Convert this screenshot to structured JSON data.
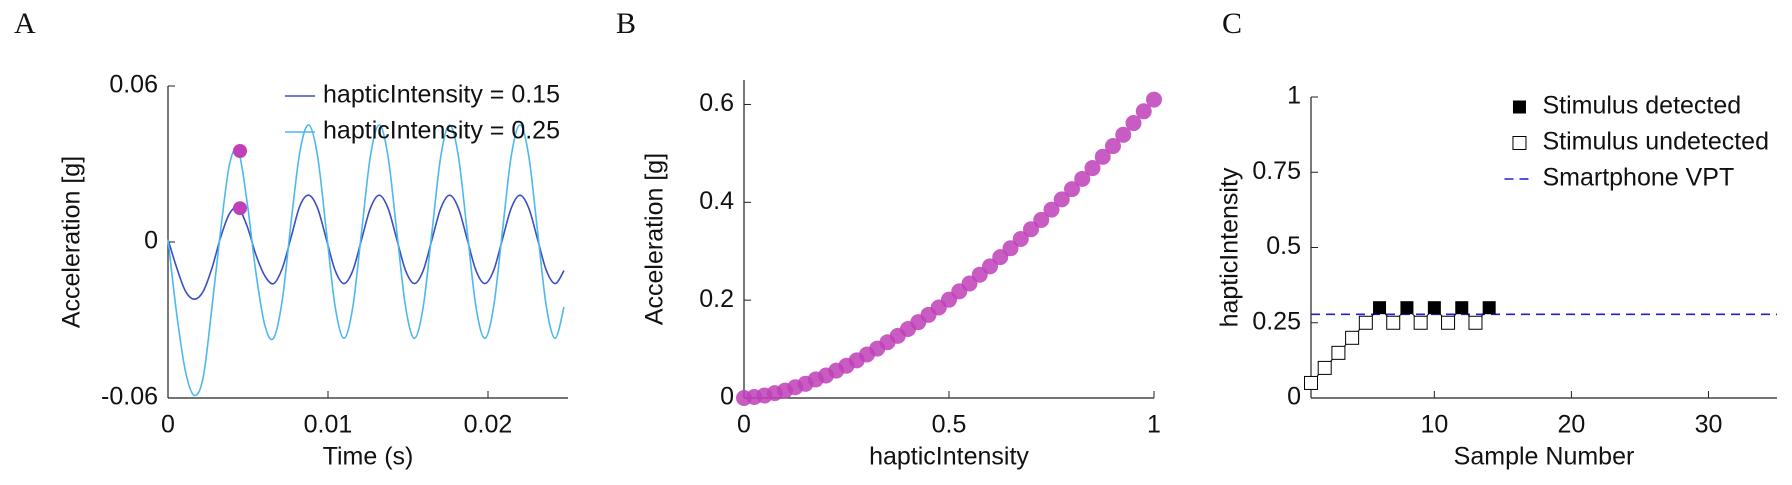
{
  "chart_data": [
    {
      "type": "line",
      "panel_label": "A",
      "xlabel": "Time (s)",
      "ylabel": "Acceleration [g]",
      "xlim": [
        0,
        0.025
      ],
      "ylim": [
        -0.06,
        0.06
      ],
      "xticks": [
        0,
        0.01,
        0.02
      ],
      "yticks": [
        -0.06,
        0,
        0.06
      ],
      "legend": "upper right",
      "x": [
        0,
        0.00055,
        0.0011,
        0.00165,
        0.0022,
        0.00275,
        0.0033,
        0.00385,
        0.0044,
        0.00495,
        0.0055,
        0.00605,
        0.0066,
        0.00715,
        0.0077,
        0.00825,
        0.0088,
        0.00935,
        0.0099,
        0.01045,
        0.011,
        0.01155,
        0.0121,
        0.01265,
        0.0132,
        0.01375,
        0.0143,
        0.01485,
        0.0154,
        0.01595,
        0.0165,
        0.01705,
        0.0176,
        0.01815,
        0.0187,
        0.01925,
        0.0198,
        0.02035,
        0.0209,
        0.02145,
        0.022,
        0.02255,
        0.0231,
        0.02365,
        0.0242,
        0.02475
      ],
      "series": [
        {
          "name": "hapticIntensity = 0.15",
          "color": "#3a4fc4",
          "values": [
            0.001,
            -0.01,
            -0.019,
            -0.022,
            -0.019,
            -0.01,
            0.002,
            0.011,
            0.013,
            0.006,
            -0.005,
            -0.013,
            -0.016,
            -0.01,
            0.002,
            0.014,
            0.018,
            0.013,
            0.001,
            -0.011,
            -0.016,
            -0.011,
            0.001,
            0.013,
            0.018,
            0.013,
            0.001,
            -0.011,
            -0.016,
            -0.011,
            0.001,
            0.013,
            0.018,
            0.013,
            0.001,
            -0.011,
            -0.016,
            -0.011,
            0.001,
            0.013,
            0.018,
            0.013,
            0.001,
            -0.011,
            -0.016,
            -0.011
          ]
        },
        {
          "name": "hapticIntensity = 0.25",
          "color": "#4db8ee",
          "values": [
            0.001,
            -0.028,
            -0.05,
            -0.059,
            -0.052,
            -0.025,
            0.005,
            0.03,
            0.035,
            0.015,
            -0.012,
            -0.032,
            -0.037,
            -0.022,
            0.008,
            0.035,
            0.045,
            0.033,
            0.004,
            -0.025,
            -0.037,
            -0.025,
            0.004,
            0.033,
            0.045,
            0.033,
            0.004,
            -0.025,
            -0.037,
            -0.025,
            0.004,
            0.033,
            0.045,
            0.033,
            0.004,
            -0.025,
            -0.037,
            -0.025,
            0.004,
            0.033,
            0.045,
            0.033,
            0.004,
            -0.025,
            -0.037,
            -0.025
          ]
        }
      ],
      "highlight_points": {
        "color": "#c040b8",
        "x": [
          0.0045,
          0.0045
        ],
        "values": [
          0.035,
          0.013
        ]
      }
    },
    {
      "type": "scatter",
      "panel_label": "B",
      "xlabel": "hapticIntensity",
      "ylabel": "Acceleration [g]",
      "xlim": [
        0,
        1
      ],
      "ylim": [
        0,
        0.65
      ],
      "xticks": [
        0,
        0.5,
        1
      ],
      "yticks": [
        0,
        0.2,
        0.4,
        0.6
      ],
      "series": [
        {
          "color": "#c040b8",
          "marker": "circle",
          "x": [
            0,
            0.025,
            0.05,
            0.075,
            0.1,
            0.125,
            0.15,
            0.175,
            0.2,
            0.225,
            0.25,
            0.275,
            0.3,
            0.325,
            0.35,
            0.375,
            0.4,
            0.425,
            0.45,
            0.475,
            0.5,
            0.525,
            0.55,
            0.575,
            0.6,
            0.625,
            0.65,
            0.675,
            0.7,
            0.725,
            0.75,
            0.775,
            0.8,
            0.825,
            0.85,
            0.875,
            0.9,
            0.925,
            0.95,
            0.975,
            1
          ],
          "values": [
            0,
            0.002,
            0.005,
            0.01,
            0.015,
            0.022,
            0.029,
            0.038,
            0.046,
            0.056,
            0.066,
            0.077,
            0.089,
            0.101,
            0.114,
            0.127,
            0.141,
            0.155,
            0.17,
            0.185,
            0.201,
            0.218,
            0.234,
            0.252,
            0.269,
            0.288,
            0.306,
            0.325,
            0.345,
            0.364,
            0.385,
            0.406,
            0.427,
            0.448,
            0.47,
            0.493,
            0.515,
            0.538,
            0.562,
            0.586,
            0.61
          ]
        }
      ]
    },
    {
      "type": "scatter",
      "panel_label": "C",
      "xlabel": "Sample Number",
      "ylabel": "hapticIntensity",
      "xlim": [
        1,
        35
      ],
      "ylim": [
        0,
        1
      ],
      "xticks": [
        10,
        20,
        30
      ],
      "yticks": [
        0,
        0.25,
        0.5,
        0.75,
        1
      ],
      "legend": "upper right",
      "connect": true,
      "series": [
        {
          "name": "Stimulus detected",
          "color": "#000000",
          "marker": "square",
          "x": [
            6,
            8,
            10,
            12,
            14
          ],
          "values": [
            0.3,
            0.3,
            0.3,
            0.3,
            0.3
          ]
        },
        {
          "name": "Stimulus undetected",
          "color": "#000000",
          "marker": "square-open",
          "x": [
            1,
            2,
            3,
            4,
            5,
            7,
            9,
            11,
            13
          ],
          "values": [
            0.05,
            0.1,
            0.15,
            0.2,
            0.25,
            0.25,
            0.25,
            0.25,
            0.25
          ]
        }
      ],
      "reference_lines": [
        {
          "name": "Smartphone VPT",
          "value": 0.278,
          "color": "#2020d0",
          "style": "dashed"
        }
      ]
    }
  ]
}
